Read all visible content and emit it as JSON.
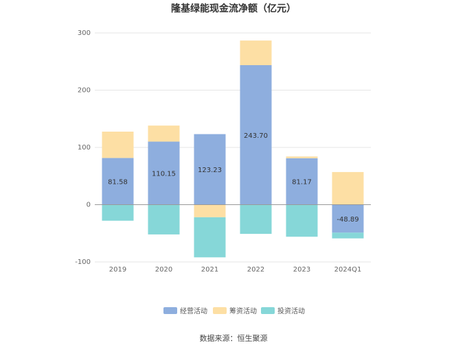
{
  "chart_data": {
    "type": "bar",
    "stacked": true,
    "title": "隆基绿能现金流净额（亿元）",
    "categories": [
      "2019",
      "2020",
      "2021",
      "2022",
      "2023",
      "2024Q1"
    ],
    "series": [
      {
        "name": "经营活动",
        "color": "#8eaede",
        "values": [
          81.58,
          110.15,
          123.23,
          243.7,
          81.17,
          -48.89
        ]
      },
      {
        "name": "筹资活动",
        "color": "#fddfa4",
        "values": [
          46,
          28,
          -22,
          43,
          3,
          57
        ]
      },
      {
        "name": "投资活动",
        "color": "#86d7d8",
        "values": [
          -28,
          -52,
          -70,
          -51,
          -56,
          -10
        ]
      }
    ],
    "data_labels": [
      "81.58",
      "110.15",
      "123.23",
      "243.70",
      "81.17",
      "-48.89"
    ],
    "ylim": [
      -100,
      300
    ],
    "yticks": [
      -100,
      0,
      100,
      200,
      300
    ],
    "grid": true,
    "legend_position": "bottom",
    "source": "数据来源：恒生聚源"
  }
}
